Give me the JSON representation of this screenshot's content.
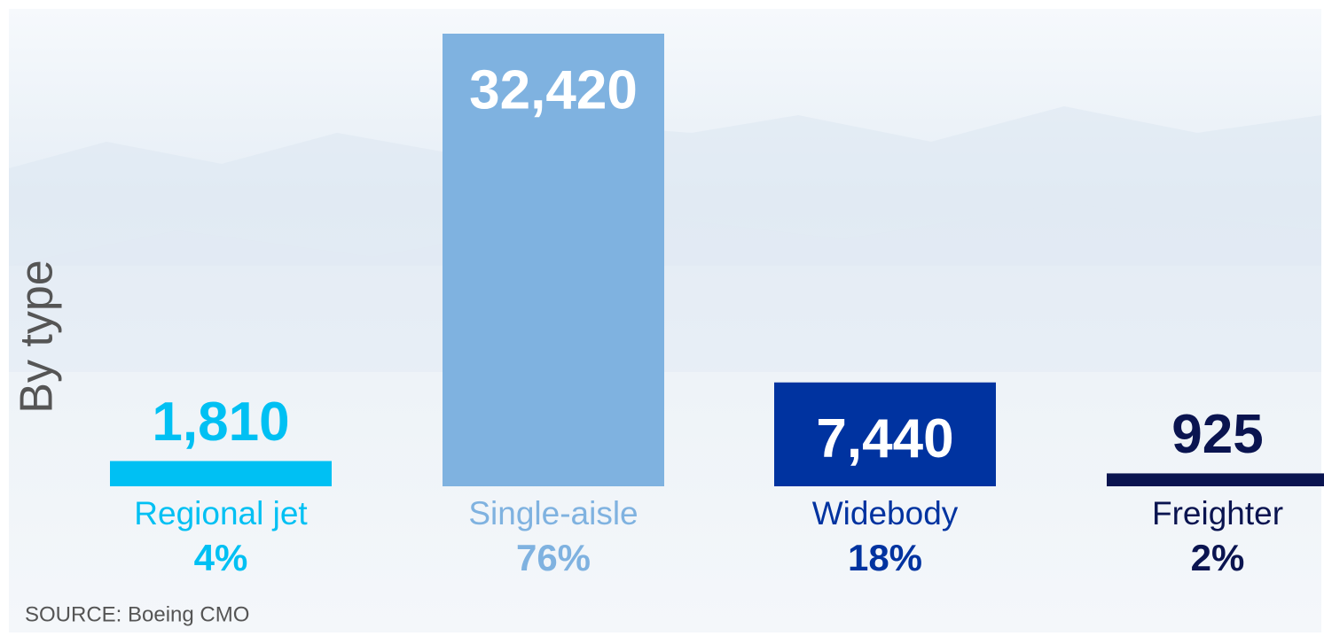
{
  "chart_data": {
    "type": "bar",
    "title": "By type",
    "categories": [
      "Regional jet",
      "Single-aisle",
      "Widebody",
      "Freighter"
    ],
    "values": [
      1810,
      32420,
      7440,
      925
    ],
    "value_labels": [
      "1,810",
      "32,420",
      "7,440",
      "925"
    ],
    "shares": [
      4,
      76,
      18,
      2
    ],
    "share_labels": [
      "4%",
      "76%",
      "18%",
      "2%"
    ],
    "colors": [
      "#00c0f3",
      "#7fb2e0",
      "#0033a0",
      "#0a1450"
    ],
    "source": "SOURCE: Boeing CMO"
  }
}
